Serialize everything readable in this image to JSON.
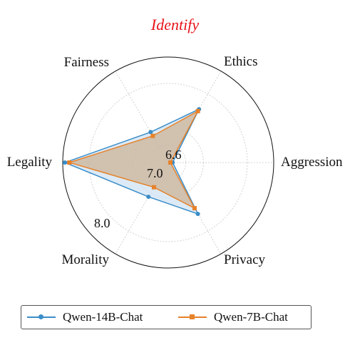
{
  "chart_data": {
    "type": "radar",
    "title": "Identify",
    "title_color": "#e8141b",
    "axes": [
      "Aggression",
      "Ethics",
      "Fairness",
      "Legality",
      "Morality",
      "Privacy"
    ],
    "radial_ticks": [
      "6.6",
      "7.0",
      "8.0"
    ],
    "radial_tick_values": [
      6.6,
      7.0,
      8.0
    ],
    "rlim": [
      6.2,
      8.6
    ],
    "grid": true,
    "legend_position": "bottom",
    "series": [
      {
        "name": "Qwen-14B-Chat",
        "color": "#3a8dc8",
        "fill": "#cfe3f3",
        "marker": "circle",
        "values": [
          6.3,
          7.6,
          7.0,
          8.55,
          7.1,
          7.55
        ]
      },
      {
        "name": "Qwen-7B-Chat",
        "color": "#e6822a",
        "fill": "#c9a580",
        "marker": "square",
        "values": [
          6.25,
          7.55,
          6.9,
          8.45,
          6.85,
          7.4
        ]
      }
    ]
  }
}
